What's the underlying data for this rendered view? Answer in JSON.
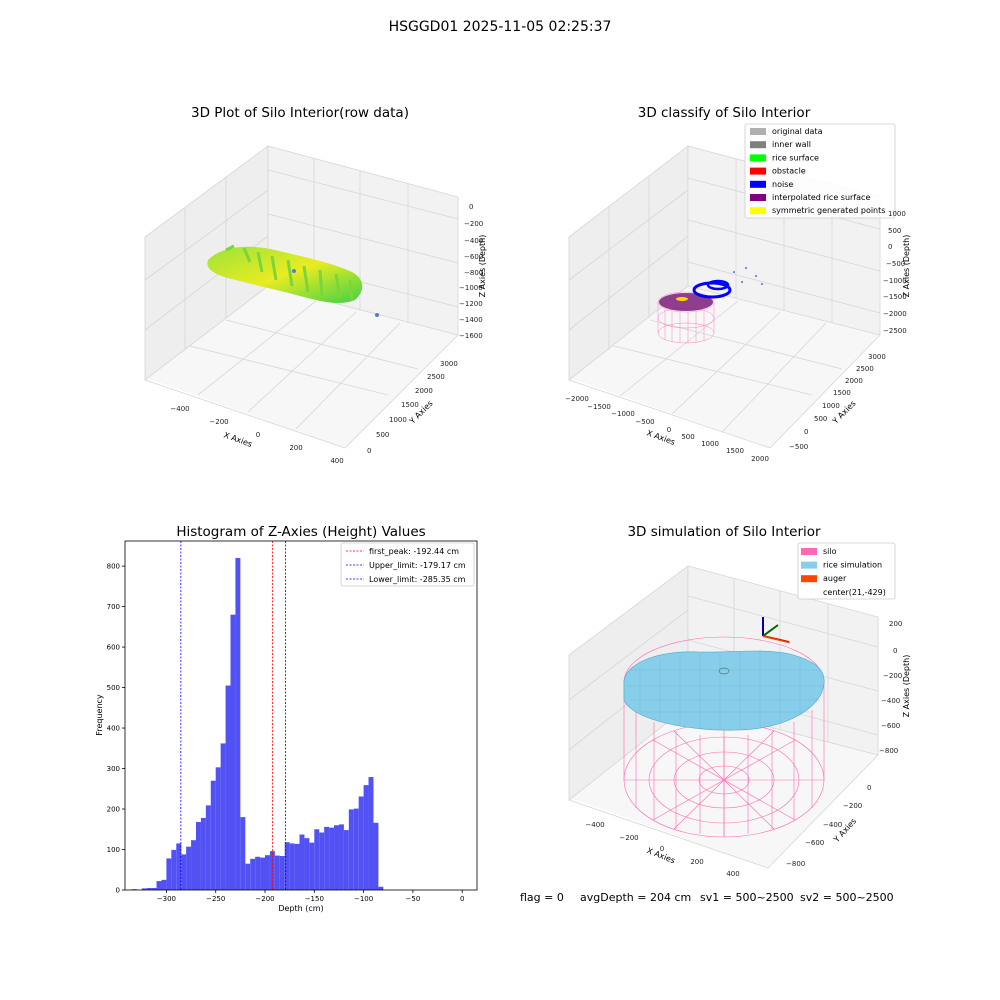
{
  "figure_title": "HSGGD01 2025-11-05 02:25:37",
  "footer": {
    "flag": "flag = 0",
    "avg_depth": "avgDepth = 204 cm",
    "sv1": "sv1 = 500~2500",
    "sv2": "sv2 = 500~2500"
  },
  "chart_data": [
    {
      "type": "scatter",
      "title": "3D Plot of Silo Interior(row data)",
      "xlabel": "X Axies",
      "ylabel": "Y Axies",
      "zlabel": "Z Axies (Depth)",
      "x_ticks": [
        "−400",
        "−200",
        "0",
        "200",
        "400"
      ],
      "y_ticks": [
        "0",
        "500",
        "1000",
        "1500",
        "2000",
        "2500",
        "3000"
      ],
      "z_ticks": [
        "0",
        "−200",
        "−400",
        "−600",
        "−800",
        "−1000",
        "−1200",
        "−1400",
        "−1600"
      ],
      "colors": {
        "point_low": "#2bd44a",
        "point_high": "#f4ee1e",
        "outlier": "#4f7fdb"
      }
    },
    {
      "type": "scatter",
      "title": "3D classify of Silo Interior",
      "xlabel": "X Axies",
      "ylabel": "Y Axies",
      "zlabel": "Z Axies (Depth)",
      "x_ticks": [
        "−2000",
        "−1500",
        "−1000",
        "−500",
        "0",
        "500",
        "1000",
        "1500",
        "2000"
      ],
      "y_ticks": [
        "−500",
        "0",
        "500",
        "1000",
        "1500",
        "2000",
        "2500",
        "3000"
      ],
      "z_ticks": [
        "1000",
        "500",
        "0",
        "−500",
        "−1000",
        "−1500",
        "−2000",
        "−2500"
      ],
      "legend_position": "top-right",
      "legend": [
        {
          "label": "original data",
          "color": "#b0b0b0"
        },
        {
          "label": "inner wall",
          "color": "#808080"
        },
        {
          "label": "rice surface",
          "color": "#00ff00"
        },
        {
          "label": "obstacle",
          "color": "#ff0000"
        },
        {
          "label": "noise",
          "color": "#0000ff"
        },
        {
          "label": "interpolated rice surface",
          "color": "#800080"
        },
        {
          "label": "symmetric generated points",
          "color": "#ffff00"
        }
      ]
    },
    {
      "type": "bar",
      "title": "Histogram of Z-Axies (Height) Values",
      "xlabel": "Depth (cm)",
      "ylabel": "Frequency",
      "xlim": [
        -342,
        15
      ],
      "ylim": [
        0,
        862
      ],
      "x_ticks": [
        -300,
        -250,
        -200,
        -150,
        -100,
        -50,
        0
      ],
      "y_ticks": [
        0,
        100,
        200,
        300,
        400,
        500,
        600,
        700,
        800
      ],
      "bin_start": -335,
      "bin_width": 5,
      "values": [
        2,
        0,
        4,
        5,
        5,
        22,
        25,
        78,
        99,
        115,
        88,
        107,
        123,
        168,
        178,
        209,
        270,
        303,
        362,
        505,
        680,
        820,
        180,
        65,
        77,
        82,
        80,
        86,
        96,
        85,
        84,
        118,
        115,
        114,
        137,
        128,
        117,
        150,
        142,
        156,
        154,
        160,
        162,
        148,
        199,
        201,
        231,
        259,
        279,
        166,
        8
      ],
      "bar_color": "#5151f4",
      "vlines": [
        {
          "label": "first_peak: -192.44 cm",
          "x": -192.44,
          "color": "#ff0000"
        },
        {
          "label": "Upper_limit: -179.17 cm",
          "x": -179.17,
          "color": "#0000ff"
        },
        {
          "label": "Lower_limit: -285.35 cm",
          "x": -285.35,
          "color": "#0000ff"
        }
      ],
      "legend_position": "top-right"
    },
    {
      "type": "area",
      "title": "3D simulation of Silo Interior",
      "xlabel": "X Axies",
      "ylabel": "Y Axies",
      "zlabel": "Z Axies (Depth)",
      "x_ticks": [
        "−400",
        "−200",
        "0",
        "200",
        "400"
      ],
      "y_ticks": [
        "0",
        "−200",
        "−400",
        "−600",
        "−800"
      ],
      "z_ticks": [
        "200",
        "0",
        "−200",
        "−400",
        "−600",
        "−800"
      ],
      "legend_position": "top-right",
      "legend": [
        {
          "label": "silo",
          "color": "#ff69b4"
        },
        {
          "label": "rice simulation",
          "color": "#87ceeb"
        },
        {
          "label": "auger",
          "color": "#ff4500"
        },
        {
          "label": "center(21,-429)",
          "color": ""
        }
      ]
    }
  ]
}
